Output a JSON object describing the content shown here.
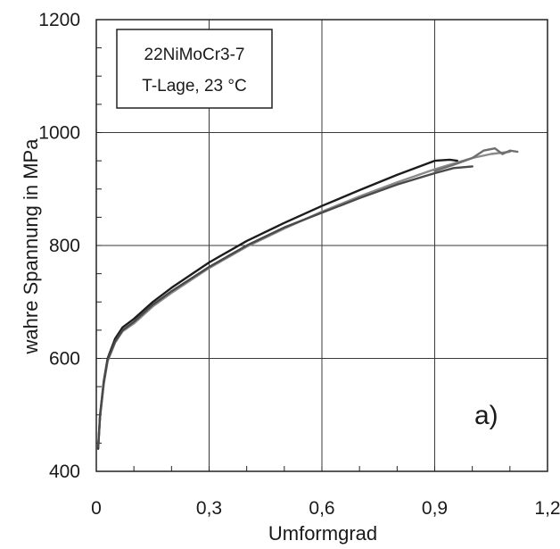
{
  "chart_data": {
    "type": "line",
    "title": "",
    "xlabel": "Umformgrad",
    "ylabel": "wahre Spannung  in MPa",
    "xlim": [
      0,
      1.2
    ],
    "ylim": [
      400,
      1200
    ],
    "x_ticks": [
      "0",
      "0,3",
      "0,6",
      "0,9",
      "1,2"
    ],
    "x_tick_values": [
      0,
      0.3,
      0.6,
      0.9,
      1.2
    ],
    "y_ticks": [
      "400",
      "600",
      "800",
      "1000",
      "1200"
    ],
    "y_tick_values": [
      400,
      600,
      800,
      1000,
      1200
    ],
    "grid": true,
    "annotation": {
      "lines": [
        "22NiMoCr3-7",
        "T-Lage, 23 °C"
      ],
      "position": "top-left"
    },
    "panel_label": "a)",
    "colors": {
      "dark": "#1c1c1c",
      "gray": "#8a8a8a",
      "mid": "#4a4a4a"
    },
    "series": [
      {
        "color": "#1c1c1c",
        "x": [
          0.005,
          0.01,
          0.02,
          0.03,
          0.05,
          0.07,
          0.1,
          0.15,
          0.2,
          0.3,
          0.4,
          0.5,
          0.6,
          0.7,
          0.8,
          0.9,
          0.94,
          0.96
        ],
        "y": [
          440,
          500,
          560,
          600,
          635,
          655,
          670,
          700,
          725,
          770,
          808,
          840,
          870,
          898,
          925,
          950,
          952,
          950
        ]
      },
      {
        "color": "#8a8a8a",
        "x": [
          0.005,
          0.01,
          0.02,
          0.03,
          0.05,
          0.07,
          0.1,
          0.15,
          0.2,
          0.3,
          0.4,
          0.5,
          0.6,
          0.7,
          0.8,
          0.9,
          1.0,
          1.05,
          1.1
        ],
        "y": [
          445,
          495,
          555,
          595,
          628,
          648,
          662,
          692,
          716,
          760,
          798,
          830,
          860,
          887,
          912,
          935,
          955,
          962,
          966
        ]
      },
      {
        "color": "#4a4a4a",
        "x": [
          0.005,
          0.01,
          0.02,
          0.03,
          0.05,
          0.07,
          0.1,
          0.15,
          0.2,
          0.3,
          0.4,
          0.5,
          0.6,
          0.7,
          0.8,
          0.9,
          0.95,
          1.0
        ],
        "y": [
          442,
          498,
          558,
          598,
          630,
          650,
          665,
          695,
          719,
          762,
          800,
          832,
          858,
          884,
          908,
          928,
          937,
          940
        ]
      },
      {
        "color": "#6e6e6e",
        "x": [
          0.9,
          0.95,
          1.0,
          1.03,
          1.06,
          1.08,
          1.1,
          1.12
        ],
        "y": [
          932,
          943,
          955,
          968,
          972,
          962,
          968,
          966
        ]
      }
    ]
  }
}
